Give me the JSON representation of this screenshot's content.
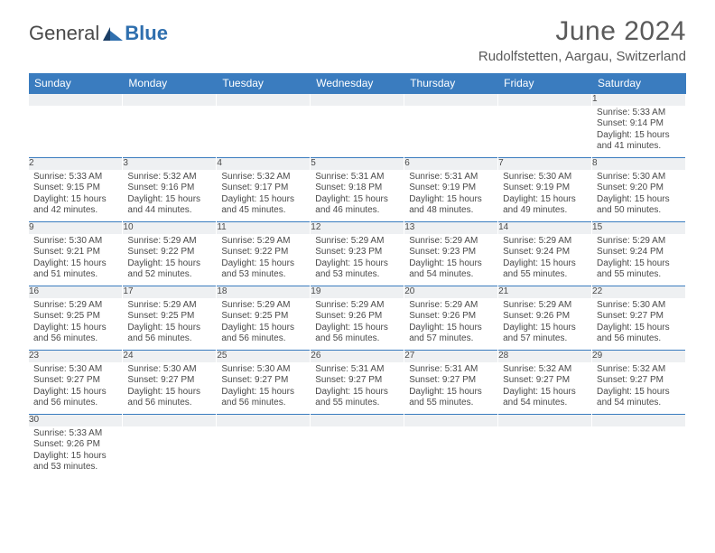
{
  "brand": {
    "part1": "General",
    "part2": "Blue"
  },
  "title": "June 2024",
  "location": "Rudolfstetten, Aargau, Switzerland",
  "header_bg": "#3a7cbf",
  "header_fg": "#ffffff",
  "daynum_bg": "#eef0f2",
  "divider_color": "#3a7cbf",
  "text_color": "#4a4a4a",
  "day_labels": [
    "Sunday",
    "Monday",
    "Tuesday",
    "Wednesday",
    "Thursday",
    "Friday",
    "Saturday"
  ],
  "weeks": [
    [
      null,
      null,
      null,
      null,
      null,
      null,
      {
        "n": "1",
        "sr": "Sunrise: 5:33 AM",
        "ss": "Sunset: 9:14 PM",
        "dl": "Daylight: 15 hours and 41 minutes."
      }
    ],
    [
      {
        "n": "2",
        "sr": "Sunrise: 5:33 AM",
        "ss": "Sunset: 9:15 PM",
        "dl": "Daylight: 15 hours and 42 minutes."
      },
      {
        "n": "3",
        "sr": "Sunrise: 5:32 AM",
        "ss": "Sunset: 9:16 PM",
        "dl": "Daylight: 15 hours and 44 minutes."
      },
      {
        "n": "4",
        "sr": "Sunrise: 5:32 AM",
        "ss": "Sunset: 9:17 PM",
        "dl": "Daylight: 15 hours and 45 minutes."
      },
      {
        "n": "5",
        "sr": "Sunrise: 5:31 AM",
        "ss": "Sunset: 9:18 PM",
        "dl": "Daylight: 15 hours and 46 minutes."
      },
      {
        "n": "6",
        "sr": "Sunrise: 5:31 AM",
        "ss": "Sunset: 9:19 PM",
        "dl": "Daylight: 15 hours and 48 minutes."
      },
      {
        "n": "7",
        "sr": "Sunrise: 5:30 AM",
        "ss": "Sunset: 9:19 PM",
        "dl": "Daylight: 15 hours and 49 minutes."
      },
      {
        "n": "8",
        "sr": "Sunrise: 5:30 AM",
        "ss": "Sunset: 9:20 PM",
        "dl": "Daylight: 15 hours and 50 minutes."
      }
    ],
    [
      {
        "n": "9",
        "sr": "Sunrise: 5:30 AM",
        "ss": "Sunset: 9:21 PM",
        "dl": "Daylight: 15 hours and 51 minutes."
      },
      {
        "n": "10",
        "sr": "Sunrise: 5:29 AM",
        "ss": "Sunset: 9:22 PM",
        "dl": "Daylight: 15 hours and 52 minutes."
      },
      {
        "n": "11",
        "sr": "Sunrise: 5:29 AM",
        "ss": "Sunset: 9:22 PM",
        "dl": "Daylight: 15 hours and 53 minutes."
      },
      {
        "n": "12",
        "sr": "Sunrise: 5:29 AM",
        "ss": "Sunset: 9:23 PM",
        "dl": "Daylight: 15 hours and 53 minutes."
      },
      {
        "n": "13",
        "sr": "Sunrise: 5:29 AM",
        "ss": "Sunset: 9:23 PM",
        "dl": "Daylight: 15 hours and 54 minutes."
      },
      {
        "n": "14",
        "sr": "Sunrise: 5:29 AM",
        "ss": "Sunset: 9:24 PM",
        "dl": "Daylight: 15 hours and 55 minutes."
      },
      {
        "n": "15",
        "sr": "Sunrise: 5:29 AM",
        "ss": "Sunset: 9:24 PM",
        "dl": "Daylight: 15 hours and 55 minutes."
      }
    ],
    [
      {
        "n": "16",
        "sr": "Sunrise: 5:29 AM",
        "ss": "Sunset: 9:25 PM",
        "dl": "Daylight: 15 hours and 56 minutes."
      },
      {
        "n": "17",
        "sr": "Sunrise: 5:29 AM",
        "ss": "Sunset: 9:25 PM",
        "dl": "Daylight: 15 hours and 56 minutes."
      },
      {
        "n": "18",
        "sr": "Sunrise: 5:29 AM",
        "ss": "Sunset: 9:25 PM",
        "dl": "Daylight: 15 hours and 56 minutes."
      },
      {
        "n": "19",
        "sr": "Sunrise: 5:29 AM",
        "ss": "Sunset: 9:26 PM",
        "dl": "Daylight: 15 hours and 56 minutes."
      },
      {
        "n": "20",
        "sr": "Sunrise: 5:29 AM",
        "ss": "Sunset: 9:26 PM",
        "dl": "Daylight: 15 hours and 57 minutes."
      },
      {
        "n": "21",
        "sr": "Sunrise: 5:29 AM",
        "ss": "Sunset: 9:26 PM",
        "dl": "Daylight: 15 hours and 57 minutes."
      },
      {
        "n": "22",
        "sr": "Sunrise: 5:30 AM",
        "ss": "Sunset: 9:27 PM",
        "dl": "Daylight: 15 hours and 56 minutes."
      }
    ],
    [
      {
        "n": "23",
        "sr": "Sunrise: 5:30 AM",
        "ss": "Sunset: 9:27 PM",
        "dl": "Daylight: 15 hours and 56 minutes."
      },
      {
        "n": "24",
        "sr": "Sunrise: 5:30 AM",
        "ss": "Sunset: 9:27 PM",
        "dl": "Daylight: 15 hours and 56 minutes."
      },
      {
        "n": "25",
        "sr": "Sunrise: 5:30 AM",
        "ss": "Sunset: 9:27 PM",
        "dl": "Daylight: 15 hours and 56 minutes."
      },
      {
        "n": "26",
        "sr": "Sunrise: 5:31 AM",
        "ss": "Sunset: 9:27 PM",
        "dl": "Daylight: 15 hours and 55 minutes."
      },
      {
        "n": "27",
        "sr": "Sunrise: 5:31 AM",
        "ss": "Sunset: 9:27 PM",
        "dl": "Daylight: 15 hours and 55 minutes."
      },
      {
        "n": "28",
        "sr": "Sunrise: 5:32 AM",
        "ss": "Sunset: 9:27 PM",
        "dl": "Daylight: 15 hours and 54 minutes."
      },
      {
        "n": "29",
        "sr": "Sunrise: 5:32 AM",
        "ss": "Sunset: 9:27 PM",
        "dl": "Daylight: 15 hours and 54 minutes."
      }
    ],
    [
      {
        "n": "30",
        "sr": "Sunrise: 5:33 AM",
        "ss": "Sunset: 9:26 PM",
        "dl": "Daylight: 15 hours and 53 minutes."
      },
      null,
      null,
      null,
      null,
      null,
      null
    ]
  ]
}
